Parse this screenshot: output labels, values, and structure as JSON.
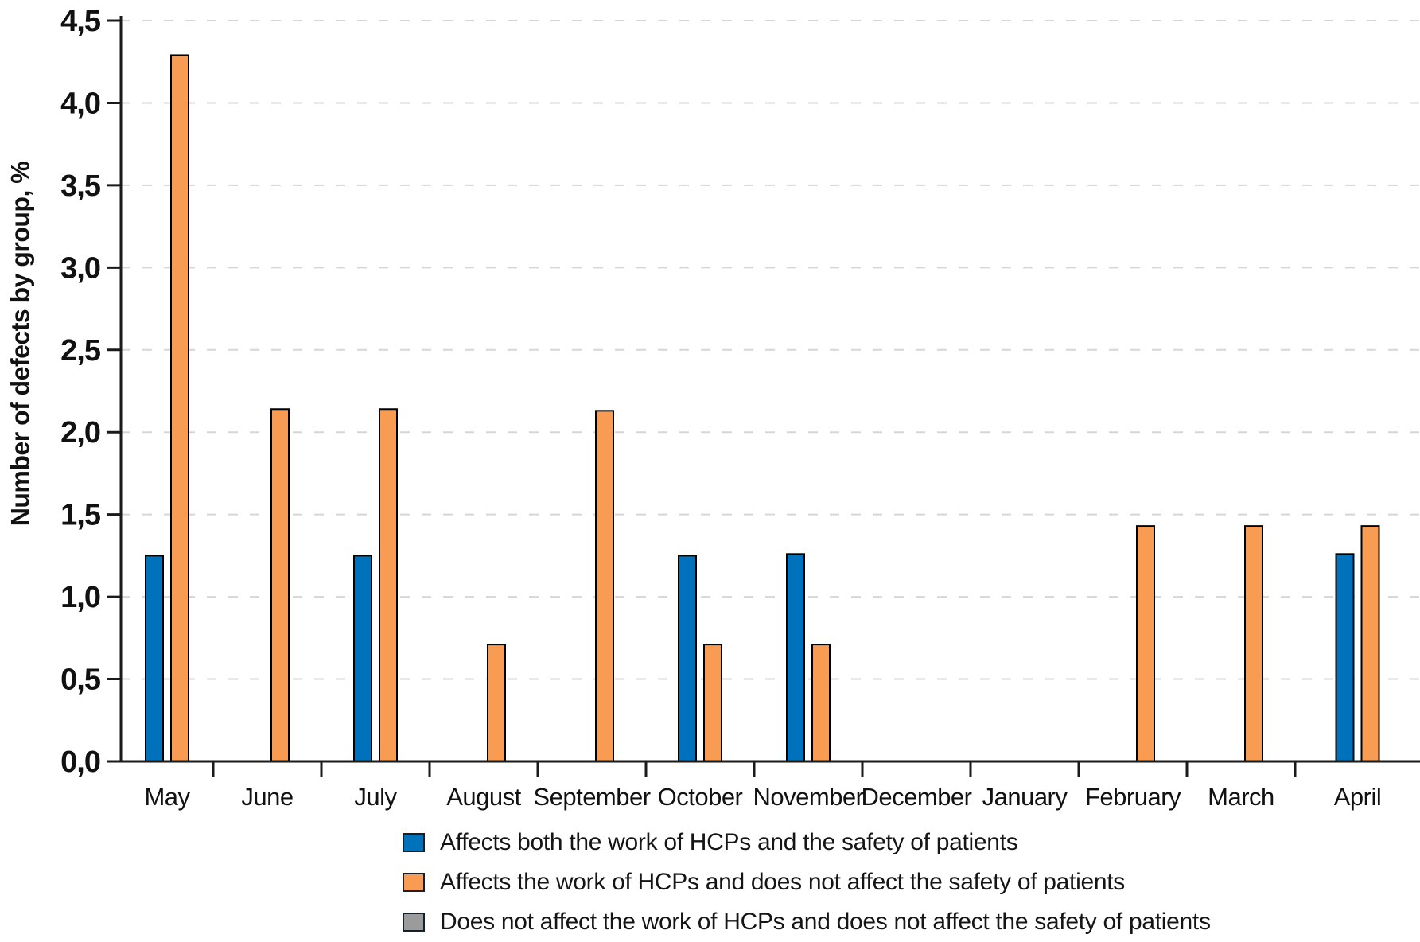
{
  "chart_data": {
    "type": "bar",
    "title": "",
    "xlabel": "",
    "ylabel": "Number of defects by group, %",
    "categories": [
      "May",
      "June",
      "July",
      "August",
      "September",
      "October",
      "November",
      "December",
      "January",
      "February",
      "March",
      "April"
    ],
    "series": [
      {
        "name": "Affects both the work of HCPs and the safety of patients",
        "color": "#0072BC",
        "values": [
          1.25,
          0,
          1.25,
          0,
          0,
          1.25,
          1.26,
          0,
          0,
          0,
          0,
          1.26
        ]
      },
      {
        "name": "Affects the work of HCPs and does not affect the safety of patients",
        "color": "#F79C52",
        "values": [
          4.29,
          2.14,
          2.14,
          0.71,
          2.13,
          0.71,
          0.71,
          0,
          0,
          1.43,
          1.43,
          1.43
        ]
      },
      {
        "name": "Does not affect the work of HCPs and does not affect the safety of patients",
        "color": "#9B9B9B",
        "values": [
          0,
          0,
          0,
          0,
          0,
          0,
          0,
          0,
          0,
          0,
          0,
          0
        ]
      }
    ],
    "ylim": [
      0,
      4.5
    ],
    "y_tick_step": 0.5,
    "y_tick_labels": [
      "0,0",
      "0,5",
      "1,0",
      "1,5",
      "2,0",
      "2,5",
      "3,0",
      "3,5",
      "4,0",
      "4,5"
    ],
    "grid": "horizontal-dashed",
    "legend_position": "bottom-left",
    "decimal_separator": ","
  },
  "style": {
    "axis_color": "#1a1a1a",
    "grid_color": "#d6d6d6",
    "bar_border_color": "#000000",
    "background": "#ffffff"
  }
}
